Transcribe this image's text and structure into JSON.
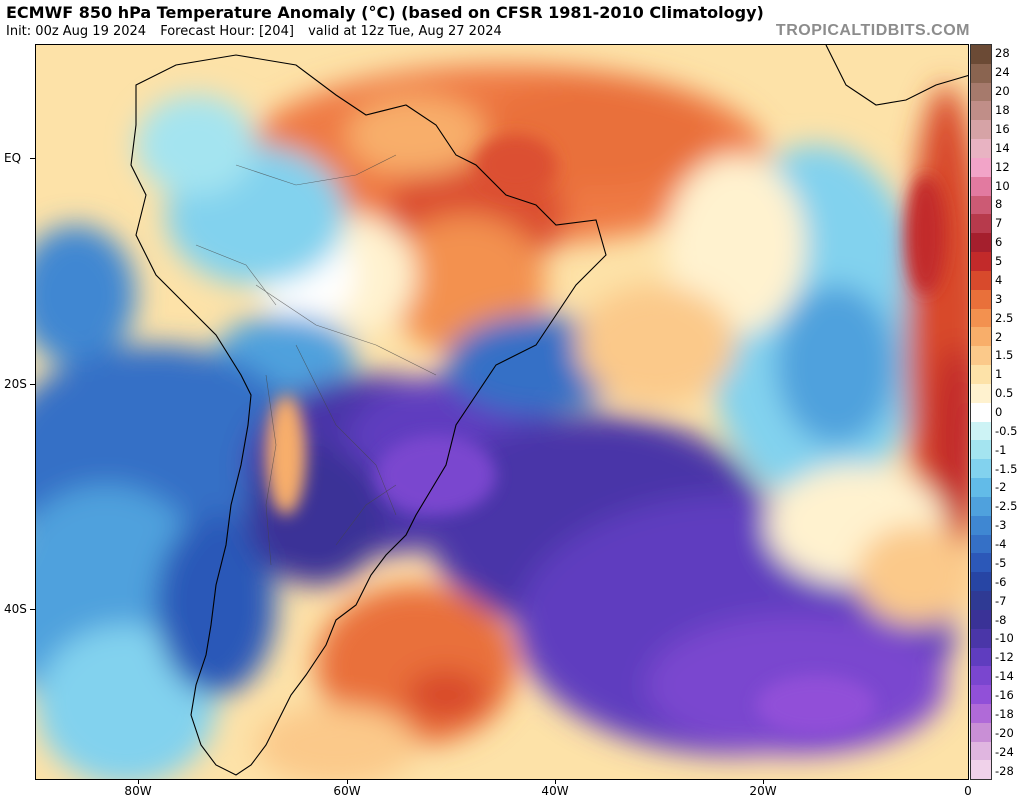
{
  "header": {
    "title": "ECMWF 850 hPa Temperature Anomaly (°C) (based on CFSR 1981-2010 Climatology)",
    "init": "Init: 00z Aug 19 2024",
    "forecast_hour": "Forecast Hour: [204]",
    "valid": "valid at 12z Tue, Aug 27 2024",
    "watermark": "TROPICALTIDBITS.COM"
  },
  "map": {
    "lat_labels": [
      "EQ",
      "20S",
      "40S"
    ],
    "lon_labels": [
      "80W",
      "60W",
      "40W",
      "20W",
      "0"
    ]
  },
  "colorbar": {
    "labels": [
      "28",
      "24",
      "20",
      "18",
      "16",
      "14",
      "12",
      "10",
      "8",
      "7",
      "6",
      "5",
      "4",
      "3",
      "2.5",
      "2",
      "1.5",
      "1",
      "0.5",
      "0",
      "-0.5",
      "-1",
      "-1.5",
      "-2",
      "-2.5",
      "-3",
      "-4",
      "-5",
      "-6",
      "-7",
      "-8",
      "-10",
      "-12",
      "-14",
      "-16",
      "-18",
      "-20",
      "-24",
      "-28"
    ],
    "colors": [
      "#6b4a35",
      "#8a6450",
      "#a67a6c",
      "#c08e88",
      "#d6a3a6",
      "#e8b3c2",
      "#f2a4c8",
      "#e27aa0",
      "#cc5a74",
      "#b73a4c",
      "#a51f2d",
      "#c22a2a",
      "#d84a2c",
      "#e9703a",
      "#f3914f",
      "#f8ae6a",
      "#fbc98a",
      "#fde2a8",
      "#fff2cf",
      "#ffffff",
      "#cdf3f5",
      "#a4e4f0",
      "#82d2ee",
      "#62bbe8",
      "#4fa1dd",
      "#3f87d2",
      "#3570c6",
      "#2c58b8",
      "#2745a4",
      "#2f3a94",
      "#3a3297",
      "#4a36a8",
      "#5f3dbf",
      "#7a46cf",
      "#9150d8",
      "#b06ad8",
      "#c98fd6",
      "#e0b6e0",
      "#f0d2ea"
    ]
  }
}
